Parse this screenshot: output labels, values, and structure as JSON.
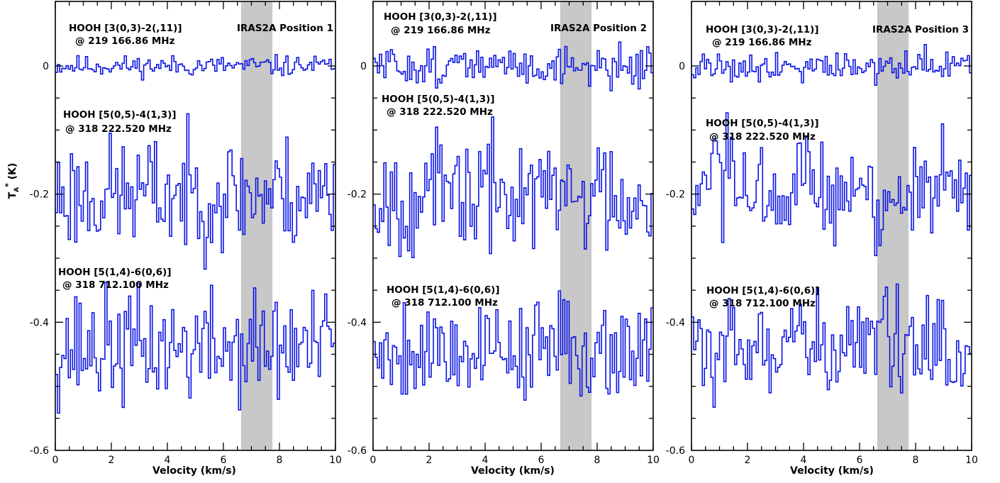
{
  "chart_data": [
    {
      "type": "line",
      "step": true,
      "title": "IRAS2A Position 1",
      "xlabel": "Velocity (km/s)",
      "ylabel": "T_A^* (K)",
      "xlim": [
        0,
        10
      ],
      "ylim": [
        -0.6,
        0.1
      ],
      "xticks": [
        "0",
        "2",
        "4",
        "6",
        "8",
        "10"
      ],
      "yticks": [
        "0",
        "-0.2",
        "-0.4",
        "-0.6"
      ],
      "highlight_band": [
        6.63,
        7.75
      ],
      "line_color": "#0b14e6",
      "band_color": "#c8c8c8",
      "series": [
        {
          "line1": "HOOH [3(0,3)-2(,11)]",
          "line2": "@ 219 166.86 MHz",
          "offset": 0,
          "noise": 0.008,
          "seed": 11
        },
        {
          "line1": "HOOH [5(0,5)-4(1,3)]",
          "line2": "@ 318 222.520 MHz",
          "offset": -0.2,
          "noise": 0.045,
          "seed": 23
        },
        {
          "line1": "HOOH [5(1,4)-6(0,6)]",
          "line2": "@ 318 712.100 MHz",
          "offset": -0.44,
          "noise": 0.045,
          "seed": 37
        }
      ]
    },
    {
      "type": "line",
      "step": true,
      "title": "IRAS2A Position 2",
      "xlabel": "Velocity (km/s)",
      "ylabel": "",
      "xlim": [
        0,
        10
      ],
      "ylim": [
        -0.6,
        0.1
      ],
      "xticks": [
        "0",
        "2",
        "4",
        "6",
        "8",
        "10"
      ],
      "yticks": [
        "0",
        "-0.2",
        "-0.4",
        "-0.6"
      ],
      "highlight_band": [
        6.68,
        7.8
      ],
      "line_color": "#0b14e6",
      "band_color": "#c8c8c8",
      "series": [
        {
          "line1": "HOOH [3(0,3)-2(,11)]",
          "line2": "@ 219 166.86 MHz",
          "offset": 0,
          "noise": 0.015,
          "seed": 51
        },
        {
          "line1": "HOOH [5(0,5)-4(1,3)]",
          "line2": "@ 318 222.520 MHz",
          "offset": -0.2,
          "noise": 0.045,
          "seed": 67
        },
        {
          "line1": "HOOH [5(1,4)-6(0,6)]",
          "line2": "@ 318 712.100 MHz",
          "offset": -0.44,
          "noise": 0.04,
          "seed": 79
        }
      ]
    },
    {
      "type": "line",
      "step": true,
      "title": "IRAS2A Position 3",
      "xlabel": "Velocity (km/s)",
      "ylabel": "",
      "xlim": [
        0,
        10
      ],
      "ylim": [
        -0.6,
        0.1
      ],
      "xticks": [
        "0",
        "2",
        "4",
        "6",
        "8",
        "10"
      ],
      "yticks": [
        "0",
        "-0.2",
        "-0.4",
        "-0.6"
      ],
      "highlight_band": [
        6.63,
        7.75
      ],
      "line_color": "#0b14e6",
      "band_color": "#c8c8c8",
      "series": [
        {
          "line1": "HOOH [3(0,3)-2(,11)]",
          "line2": "@ 219 166.86 MHz",
          "offset": 0,
          "noise": 0.012,
          "seed": 91
        },
        {
          "line1": "HOOH [5(0,5)-4(1,3)]",
          "line2": "@ 318 222.520 MHz",
          "offset": -0.2,
          "noise": 0.045,
          "seed": 103
        },
        {
          "line1": "HOOH [5(1,4)-6(0,6)]",
          "line2": "@ 318 712.100 MHz",
          "offset": -0.44,
          "noise": 0.04,
          "seed": 117
        }
      ]
    }
  ]
}
